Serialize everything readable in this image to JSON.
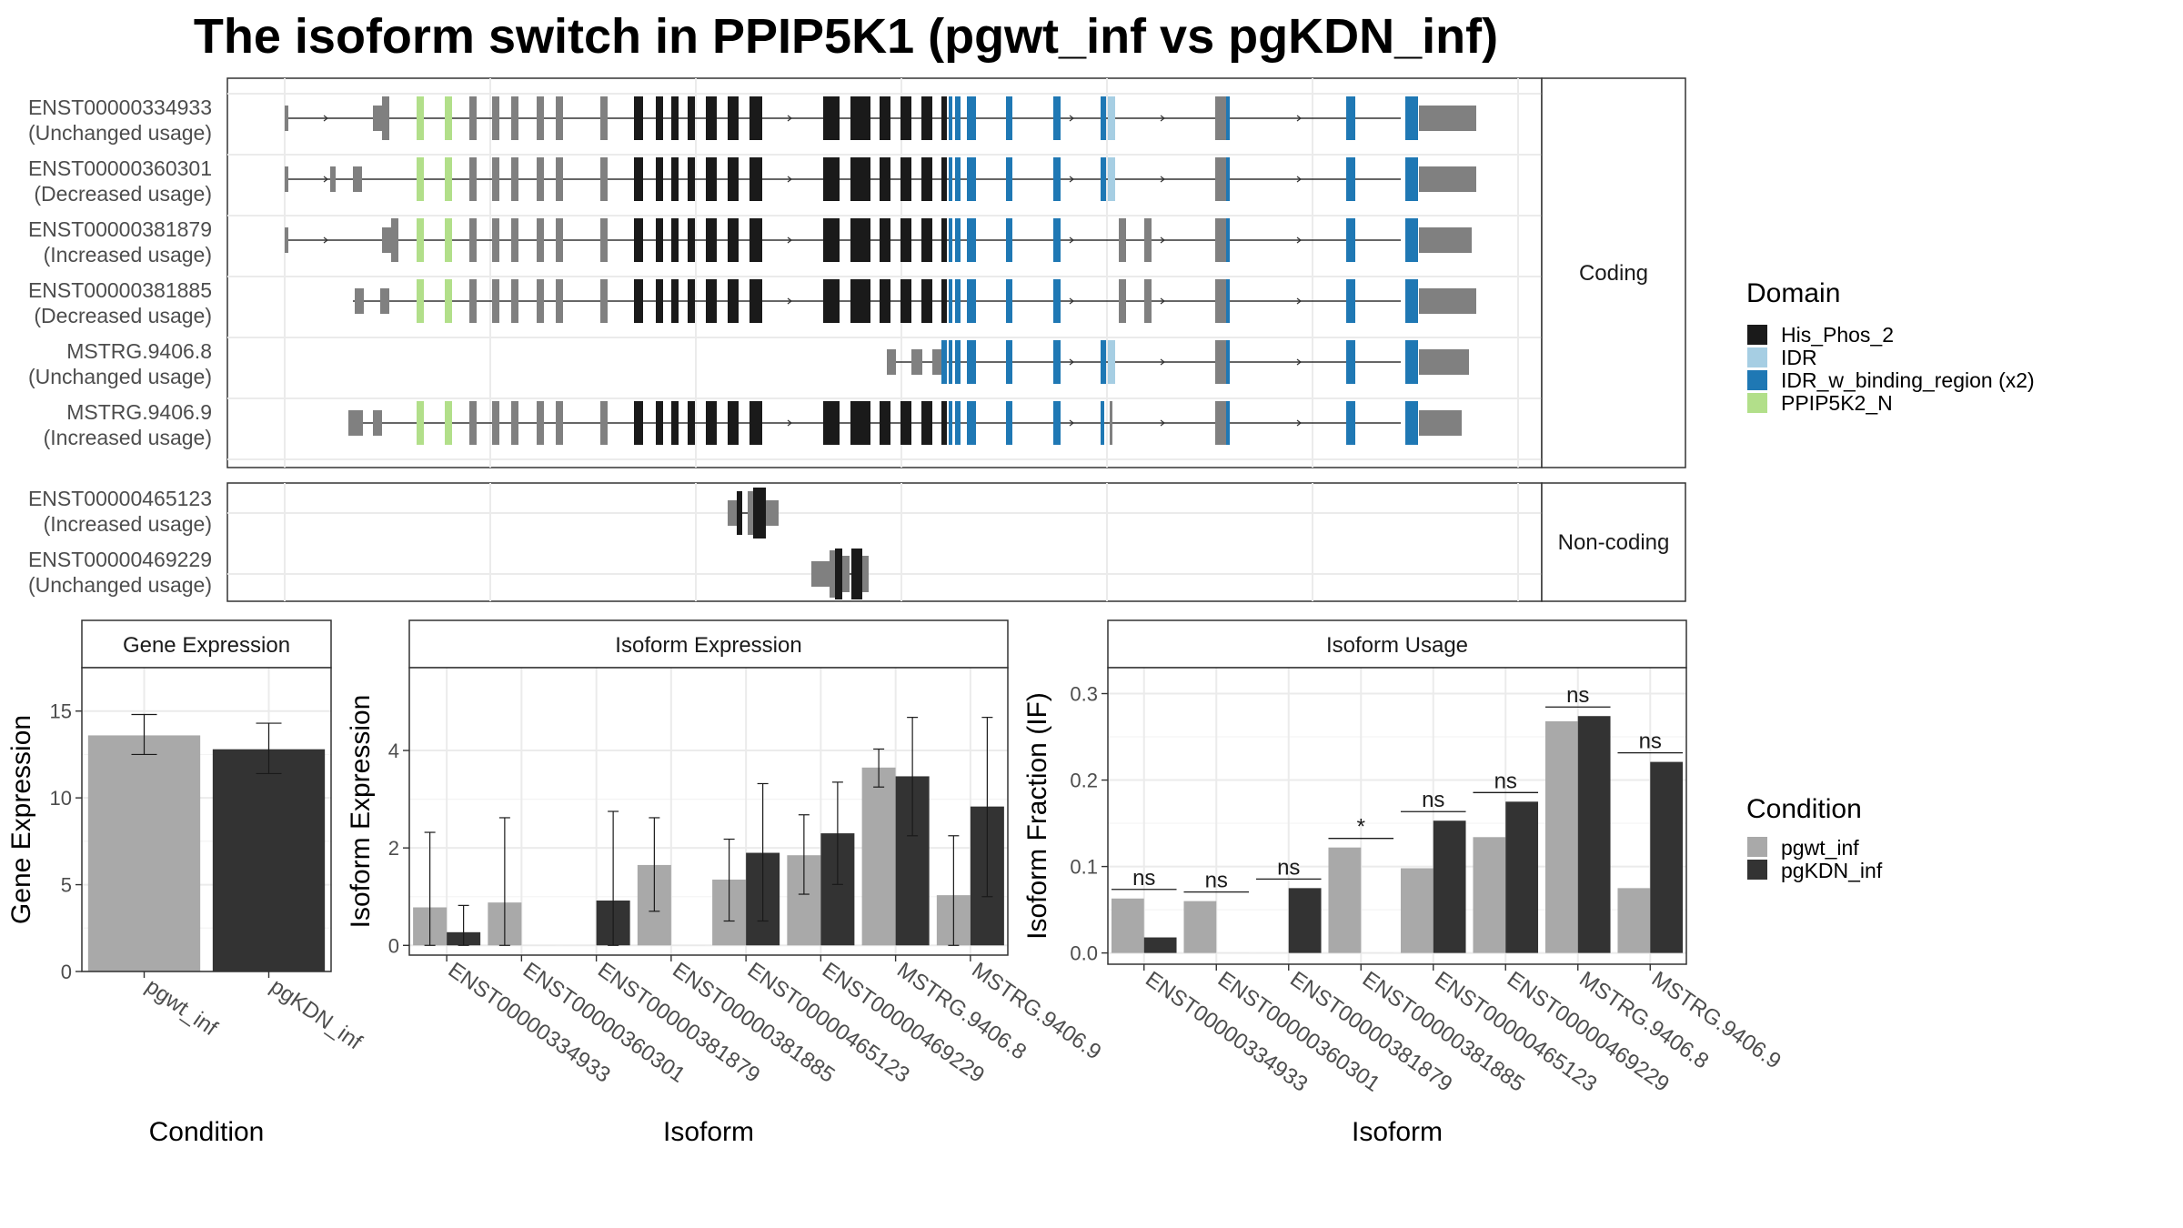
{
  "title": "The isoform switch in PPIP5K1 (pgwt_inf vs pgKDN_inf)",
  "structure": {
    "coding_label": "Coding",
    "noncoding_label": "Non-coding",
    "coding_isoforms": [
      {
        "id": "ENST00000334933",
        "usage": "(Unchanged usage)"
      },
      {
        "id": "ENST00000360301",
        "usage": "(Decreased usage)"
      },
      {
        "id": "ENST00000381879",
        "usage": "(Increased usage)"
      },
      {
        "id": "ENST00000381885",
        "usage": "(Decreased usage)"
      },
      {
        "id": "MSTRG.9406.8",
        "usage": "(Unchanged usage)"
      },
      {
        "id": "MSTRG.9406.9",
        "usage": "(Increased usage)"
      }
    ],
    "noncoding_isoforms": [
      {
        "id": "ENST00000465123",
        "usage": "(Increased usage)"
      },
      {
        "id": "ENST00000469229",
        "usage": "(Unchanged usage)"
      }
    ]
  },
  "legend_domain": {
    "title": "Domain",
    "items": [
      {
        "label": "His_Phos_2",
        "color": "#1a1a1a"
      },
      {
        "label": "IDR",
        "color": "#a6cee3"
      },
      {
        "label": "IDR_w_binding_region (x2)",
        "color": "#1f78b4"
      },
      {
        "label": "PPIP5K2_N",
        "color": "#b2df8a"
      }
    ]
  },
  "legend_condition": {
    "title": "Condition",
    "items": [
      {
        "label": "pgwt_inf",
        "color": "#a9a9a9"
      },
      {
        "label": "pgKDN_inf",
        "color": "#333333"
      }
    ]
  },
  "chart_data": [
    {
      "type": "bar",
      "title": "Gene Expression",
      "xlabel": "Condition",
      "ylabel": "Gene Expression",
      "categories": [
        "pgwt_inf",
        "pgKDN_inf"
      ],
      "values": [
        13.6,
        12.8
      ],
      "error_low": [
        12.5,
        11.4
      ],
      "error_high": [
        14.8,
        14.3
      ],
      "ylim": [
        0,
        17.5
      ],
      "yticks": [
        0,
        5,
        10,
        15
      ],
      "grid": true
    },
    {
      "type": "bar",
      "title": "Isoform Expression",
      "xlabel": "Isoform",
      "ylabel": "Isoform Expression",
      "categories": [
        "ENST00000334933",
        "ENST00000360301",
        "ENST00000381879",
        "ENST00000381885",
        "ENST00000465123",
        "ENST00000469229",
        "MSTRG.9406.8",
        "MSTRG.9406.9"
      ],
      "series": [
        {
          "name": "pgwt_inf",
          "values": [
            0.78,
            0.88,
            0.0,
            1.65,
            1.35,
            1.85,
            3.65,
            1.03
          ],
          "error_low": [
            0,
            0,
            0,
            0.7,
            0.5,
            1.05,
            3.25,
            0
          ],
          "error_high": [
            2.32,
            2.62,
            0,
            2.62,
            2.18,
            2.68,
            4.03,
            2.25
          ]
        },
        {
          "name": "pgKDN_inf",
          "values": [
            0.27,
            0.0,
            0.92,
            0.0,
            1.9,
            2.3,
            3.47,
            2.85
          ],
          "error_low": [
            0,
            0,
            0,
            0,
            0.5,
            1.25,
            2.25,
            1.0
          ],
          "error_high": [
            0.82,
            0,
            2.75,
            0,
            3.32,
            3.35,
            4.68,
            4.68
          ]
        }
      ],
      "ylim": [
        -0.2,
        5.7
      ],
      "yticks": [
        0,
        2,
        4
      ],
      "grid": true
    },
    {
      "type": "bar",
      "title": "Isoform Usage",
      "xlabel": "Isoform",
      "ylabel": "Isoform Fraction (IF)",
      "categories": [
        "ENST00000334933",
        "ENST00000360301",
        "ENST00000381879",
        "ENST00000381885",
        "ENST00000465123",
        "ENST00000469229",
        "MSTRG.9406.8",
        "MSTRG.9406.9"
      ],
      "series": [
        {
          "name": "pgwt_inf",
          "values": [
            0.063,
            0.06,
            0.0,
            0.122,
            0.098,
            0.134,
            0.268,
            0.075
          ]
        },
        {
          "name": "pgKDN_inf",
          "values": [
            0.018,
            0.0,
            0.075,
            0.0,
            0.153,
            0.175,
            0.274,
            0.221
          ]
        }
      ],
      "significance": [
        "ns",
        "ns",
        "ns",
        "*",
        "ns",
        "ns",
        "ns",
        "ns"
      ],
      "ylim": [
        -0.013,
        0.33
      ],
      "yticks": [
        0.0,
        0.1,
        0.2,
        0.3
      ],
      "ytick_labels": [
        "0.0",
        "0.1",
        "0.2",
        "0.3"
      ],
      "grid": true
    }
  ]
}
